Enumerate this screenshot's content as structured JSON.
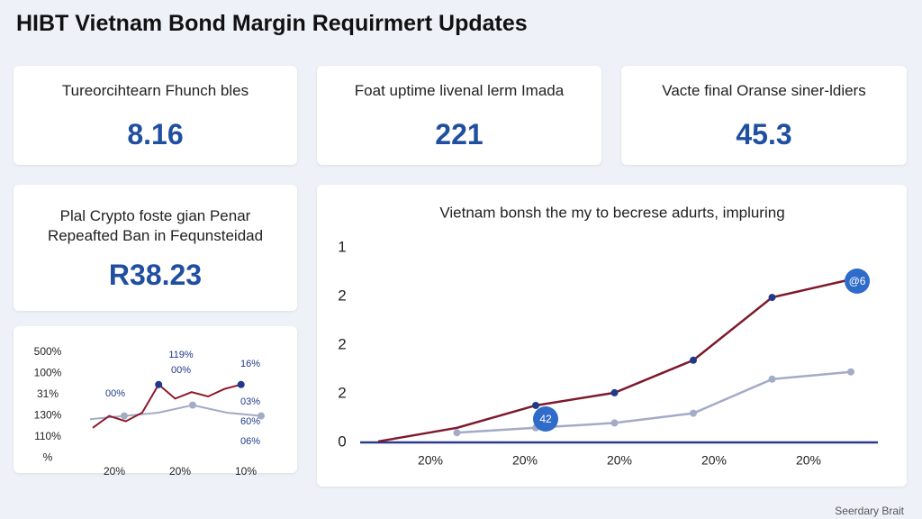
{
  "header": {
    "title": "HIBT Vietnam Bond Margin Requirmert Updates"
  },
  "kpis": [
    {
      "label": "Tureorcihtearn Fhunch bles",
      "value": "8.16"
    },
    {
      "label": "Foat uptime livenal lerm Imada",
      "value": "221"
    },
    {
      "label": "Vacte final Oranse siner-ldiers",
      "value": "45.3"
    }
  ],
  "feature": {
    "label_lines": [
      "Plal Crypto foste gian Penar",
      "Repeafted Ban in Fequnsteidad"
    ],
    "value": "R38.23"
  },
  "mini_chart": {
    "y_labels": [
      "500%",
      "100%",
      "31%",
      "130%",
      "110%",
      "%"
    ],
    "x_labels": [
      "20%",
      "20%",
      "10%"
    ],
    "annotations": [
      "119%",
      "00%",
      "16%",
      "00%",
      "03%",
      "60%",
      "06%"
    ],
    "ylim": [
      0,
      10
    ],
    "series": [
      {
        "color": "#8b1a2b",
        "values": [
          2.1,
          3.2,
          2.7,
          3.5,
          6.1,
          4.8,
          5.4,
          5.0,
          5.7,
          6.1
        ]
      },
      {
        "color": "#a3abc6",
        "values": [
          2.9,
          3.2,
          3.5,
          4.2,
          3.5,
          3.2
        ]
      }
    ]
  },
  "main_chart": {
    "title": "Vietnam bonsh the my to becrese adurts, impluring",
    "y_labels": [
      "1",
      "2",
      "2",
      "2",
      "0"
    ],
    "x_labels": [
      "20%",
      "20%",
      "20%",
      "20%",
      "20%"
    ],
    "ylim": [
      0,
      4
    ],
    "series": [
      {
        "color": "#7d1a2c",
        "values": [
          0.02,
          0.3,
          0.76,
          1.02,
          1.69,
          2.98,
          3.35
        ]
      },
      {
        "color": "#a3abc6",
        "values": [
          null,
          0.2,
          0.3,
          0.4,
          0.6,
          1.3,
          1.45
        ]
      }
    ],
    "badges": [
      "@6",
      "42"
    ]
  },
  "footer": {
    "text": "Seerdary Brait"
  }
}
